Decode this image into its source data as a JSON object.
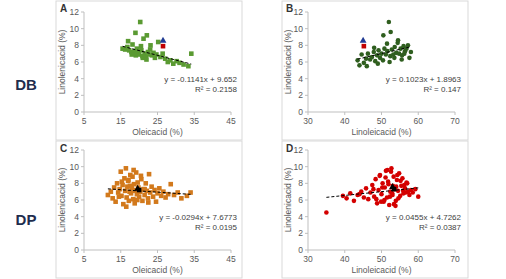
{
  "chart_data": [
    {
      "type": "scatter",
      "title": "A",
      "subtitle": "DB",
      "x_label": "Oleicacid (%)",
      "y_label": "Linolenicacid (%)",
      "xlim": [
        5,
        45
      ],
      "xticks": [
        5,
        15,
        25,
        35,
        45
      ],
      "ylim": [
        0,
        12
      ],
      "yticks": [
        0,
        2,
        4,
        6,
        8,
        10,
        12
      ],
      "grid": false,
      "series": [
        {
          "color": "#5a9a32",
          "marker": "square",
          "x": [
            15.5,
            16.2,
            16.8,
            17.3,
            17.9,
            18.2,
            18.5,
            18.8,
            19.1,
            19.4,
            19.7,
            20.0,
            20.3,
            20.6,
            20.9,
            21.2,
            21.5,
            21.8,
            22.1,
            22.4,
            22.8,
            23.1,
            23.5,
            23.9,
            24.3,
            24.7,
            25.2,
            25.8,
            26.4,
            27.1,
            27.8,
            28.5,
            29.3,
            30.2,
            31.0,
            32.1,
            33.4,
            34.2,
            17.0,
            19.0,
            20.5,
            21.0,
            22.0,
            23.0,
            18.0
          ],
          "values": [
            7.6,
            7.5,
            7.8,
            7.4,
            7.2,
            8.1,
            7.0,
            7.3,
            6.8,
            7.6,
            7.1,
            6.9,
            10.8,
            7.4,
            6.7,
            8.8,
            7.0,
            6.6,
            9.2,
            7.2,
            6.9,
            8.0,
            6.8,
            7.1,
            6.5,
            6.9,
            8.4,
            6.6,
            7.0,
            6.4,
            6.0,
            6.2,
            5.8,
            6.1,
            5.9,
            5.7,
            5.5,
            7.0,
            8.5,
            9.5,
            7.9,
            6.5,
            6.3,
            7.5,
            6.9
          ]
        },
        {
          "color": "#1f3a93",
          "marker": "triangle",
          "x": [
            26.5
          ],
          "values": [
            8.6
          ]
        },
        {
          "color": "#c00000",
          "marker": "square",
          "x": [
            26.5
          ],
          "values": [
            7.9
          ]
        }
      ],
      "trendline": {
        "slope": -0.1141,
        "intercept": 9.652,
        "equation": "y = -0.1141x + 9.652",
        "r2": "R² = 0.2158",
        "line_style": "dashed"
      }
    },
    {
      "type": "scatter",
      "title": "B",
      "x_label": "Linoleicacid (%)",
      "y_label": "Linolenicacid (%)",
      "xlim": [
        30,
        70
      ],
      "xticks": [
        30,
        40,
        50,
        60,
        70
      ],
      "ylim": [
        0,
        12
      ],
      "yticks": [
        0,
        2,
        4,
        6,
        8,
        10,
        12
      ],
      "grid": false,
      "series": [
        {
          "color": "#2f5e1f",
          "marker": "circle",
          "x": [
            43.5,
            44.0,
            44.6,
            45.2,
            45.8,
            46.3,
            46.9,
            47.4,
            47.9,
            48.3,
            48.8,
            49.2,
            49.6,
            50.0,
            50.4,
            50.8,
            51.2,
            51.6,
            52.0,
            52.4,
            52.8,
            53.2,
            53.6,
            54.0,
            54.4,
            54.8,
            55.2,
            55.6,
            56.0,
            56.4,
            56.8,
            57.2,
            57.6,
            58.0,
            49.0,
            50.5,
            51.5,
            52.5,
            53.5,
            54.5,
            55.5,
            46.0,
            48.0,
            52.2,
            56.2
          ],
          "values": [
            6.2,
            5.6,
            6.9,
            5.9,
            6.4,
            7.0,
            6.3,
            6.6,
            7.2,
            6.1,
            6.8,
            7.4,
            6.5,
            7.0,
            6.2,
            7.6,
            6.9,
            7.3,
            10.8,
            6.7,
            7.5,
            6.9,
            7.8,
            7.1,
            8.3,
            7.0,
            7.6,
            6.8,
            7.9,
            7.3,
            7.6,
            8.0,
            6.5,
            7.2,
            5.8,
            9.2,
            8.2,
            9.6,
            6.5,
            8.6,
            6.3,
            5.5,
            7.7,
            6.0,
            7.0
          ]
        },
        {
          "color": "#1f3a93",
          "marker": "triangle",
          "x": [
            45.0
          ],
          "values": [
            8.6
          ]
        },
        {
          "color": "#c00000",
          "marker": "square",
          "x": [
            45.2
          ],
          "values": [
            7.9
          ]
        }
      ],
      "trendline": {
        "slope": 0.1023,
        "intercept": 1.8963,
        "equation": "y = 0.1023x + 1.8963",
        "r2": "R² = 0.147",
        "line_style": "dashed"
      }
    },
    {
      "type": "scatter",
      "title": "C",
      "subtitle": "DP",
      "x_label": "Oleicacid (%)",
      "y_label": "Linolenicacid (%)",
      "xlim": [
        5,
        45
      ],
      "xticks": [
        5,
        15,
        25,
        35,
        45
      ],
      "ylim": [
        0,
        12
      ],
      "yticks": [
        0,
        2,
        4,
        6,
        8,
        10,
        12
      ],
      "grid": false,
      "series": [
        {
          "color": "#d2791c",
          "marker": "square",
          "x": [
            11.5,
            12.3,
            12.8,
            13.2,
            13.6,
            14.0,
            14.3,
            14.7,
            15.0,
            15.2,
            15.5,
            15.7,
            16.0,
            16.2,
            16.4,
            16.6,
            16.8,
            17.0,
            17.2,
            17.4,
            17.6,
            17.8,
            18.0,
            18.2,
            18.4,
            18.6,
            18.8,
            19.0,
            19.2,
            19.4,
            19.6,
            19.8,
            20.0,
            20.3,
            20.6,
            20.9,
            21.2,
            21.5,
            21.8,
            22.1,
            22.4,
            22.7,
            23.0,
            23.4,
            23.8,
            24.2,
            24.6,
            25.0,
            25.5,
            26.0,
            26.6,
            27.2,
            27.9,
            28.6,
            29.5,
            30.5,
            31.5,
            33.0,
            34.0,
            15.3,
            16.5,
            17.5,
            18.5,
            19.5,
            20.5,
            21.5,
            22.5,
            14.5,
            17.1,
            18.9
          ],
          "values": [
            6.6,
            7.0,
            6.2,
            7.5,
            5.8,
            8.0,
            6.9,
            7.3,
            9.4,
            6.5,
            7.8,
            5.5,
            8.6,
            7.1,
            9.8,
            6.3,
            7.6,
            8.3,
            5.9,
            7.0,
            9.0,
            6.8,
            7.4,
            8.8,
            6.1,
            7.9,
            5.6,
            7.2,
            9.3,
            6.7,
            8.1,
            7.5,
            6.4,
            7.0,
            8.5,
            5.9,
            7.3,
            6.6,
            8.0,
            7.1,
            6.2,
            9.1,
            6.9,
            7.6,
            6.4,
            7.2,
            5.8,
            6.8,
            7.4,
            6.5,
            7.0,
            6.3,
            6.7,
            7.9,
            6.6,
            6.9,
            6.2,
            6.5,
            6.9,
            8.2,
            5.2,
            7.7,
            9.6,
            6.0,
            8.9,
            7.3,
            5.7,
            6.4,
            8.4,
            7.1
          ]
        },
        {
          "color": "#000000",
          "marker": "triangle",
          "x": [
            19.6
          ],
          "values": [
            7.4
          ]
        },
        {
          "color": "#000000",
          "marker": "square",
          "x": [
            20.0
          ],
          "values": [
            7.2
          ]
        }
      ],
      "trendline": {
        "slope": -0.0294,
        "intercept": 7.6773,
        "equation": "y = -0.0294x + 7.6773",
        "r2": "R² = 0.0195",
        "line_style": "dashed"
      }
    },
    {
      "type": "scatter",
      "title": "D",
      "x_label": "Linoleicacid (%)",
      "y_label": "Linolenicacid (%)",
      "xlim": [
        30,
        70
      ],
      "xticks": [
        30,
        40,
        50,
        60,
        70
      ],
      "ylim": [
        0,
        12
      ],
      "yticks": [
        0,
        2,
        4,
        6,
        8,
        10,
        12
      ],
      "grid": false,
      "series": [
        {
          "color": "#d40000",
          "marker": "circle",
          "x": [
            35.0,
            39.5,
            40.5,
            41.5,
            42.5,
            43.5,
            44.5,
            45.2,
            45.8,
            46.4,
            47.0,
            47.5,
            48.0,
            48.4,
            48.8,
            49.2,
            49.6,
            50.0,
            50.3,
            50.6,
            50.9,
            51.2,
            51.5,
            51.8,
            52.1,
            52.4,
            52.7,
            53.0,
            53.3,
            53.6,
            53.9,
            54.2,
            54.5,
            54.8,
            55.1,
            55.4,
            55.7,
            56.0,
            56.4,
            56.8,
            57.2,
            57.6,
            58.0,
            58.5,
            59.2,
            60.0,
            49.5,
            50.8,
            51.9,
            52.6,
            53.4,
            54.0,
            54.6,
            55.2,
            56.2,
            52.9,
            51.1,
            53.8,
            55.9,
            50.2,
            48.6,
            57.0,
            54.3,
            52.3,
            53.1,
            49.9,
            56.6,
            51.6,
            47.8,
            44.0
          ],
          "values": [
            4.5,
            6.5,
            6.2,
            6.8,
            5.9,
            6.6,
            7.0,
            6.3,
            7.4,
            6.1,
            6.9,
            7.8,
            6.4,
            8.5,
            5.6,
            7.2,
            9.0,
            6.7,
            8.0,
            5.8,
            7.5,
            9.5,
            6.3,
            8.2,
            5.4,
            7.0,
            9.8,
            6.6,
            8.8,
            7.3,
            5.9,
            8.4,
            7.1,
            9.2,
            6.5,
            7.7,
            8.6,
            6.8,
            7.4,
            8.1,
            7.0,
            6.6,
            7.2,
            6.9,
            7.3,
            6.4,
            8.9,
            6.0,
            7.9,
            9.4,
            5.5,
            7.6,
            6.2,
            8.3,
            7.8,
            6.8,
            8.7,
            5.3,
            7.1,
            7.5,
            6.1,
            8.0,
            9.0,
            6.4,
            7.7,
            5.8,
            6.9,
            9.6,
            7.3,
            6.7
          ]
        },
        {
          "color": "#000000",
          "marker": "triangle",
          "x": [
            53.0
          ],
          "values": [
            7.6
          ]
        },
        {
          "color": "#000000",
          "marker": "square",
          "x": [
            53.4
          ],
          "values": [
            7.3
          ]
        }
      ],
      "trendline": {
        "slope": 0.0455,
        "intercept": 4.7262,
        "equation": "y = 0.0455x + 4.7262",
        "r2": "R² = 0.0387",
        "line_style": "dashed"
      }
    }
  ]
}
